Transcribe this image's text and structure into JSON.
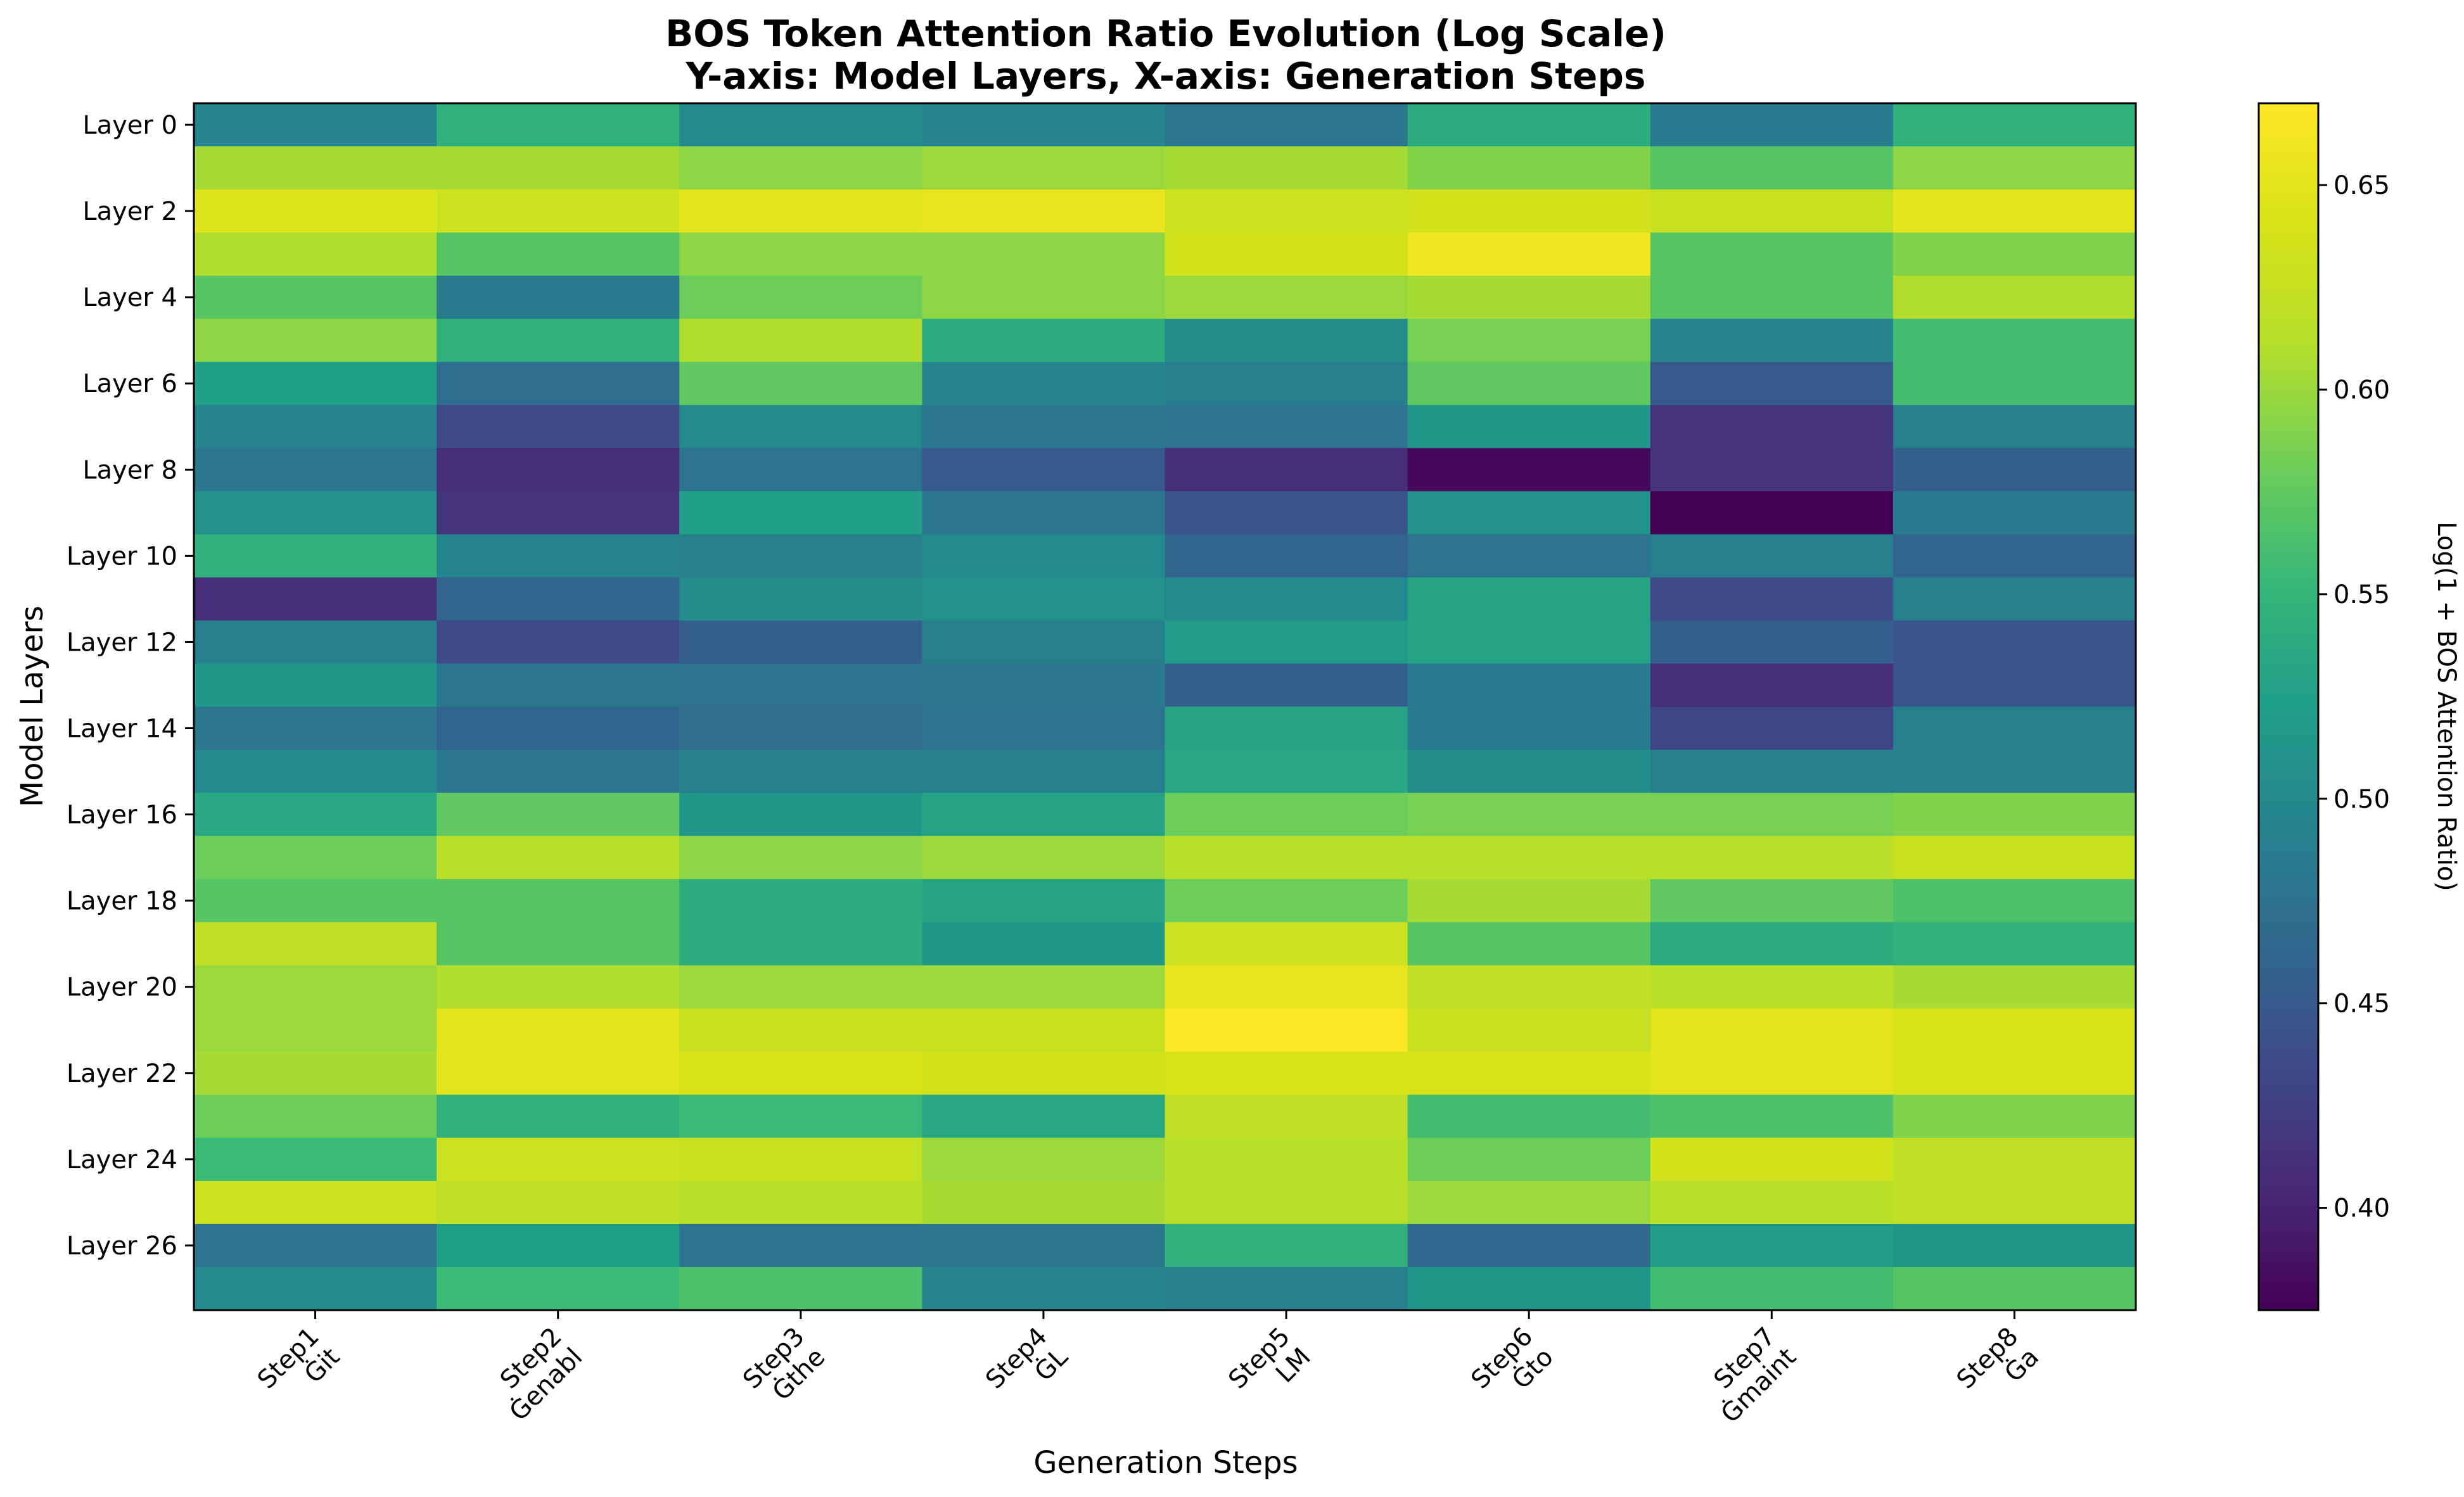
{
  "chart_data": {
    "type": "heatmap",
    "title": "BOS Token Attention Ratio Evolution (Log Scale)",
    "subtitle": "Y-axis: Model Layers, X-axis: Generation Steps",
    "xlabel": "Generation Steps",
    "ylabel": "Model Layers",
    "colorbar_label": "Log(1 + BOS Attention Ratio)",
    "colormap": "viridis",
    "color_range": [
      0.375,
      0.67
    ],
    "colorbar_ticks": [
      "0.40",
      "0.45",
      "0.50",
      "0.55",
      "0.60",
      "0.65"
    ],
    "colorbar_tick_values": [
      0.4,
      0.45,
      0.5,
      0.55,
      0.6,
      0.65
    ],
    "x_categories": [
      {
        "step": "Step1",
        "token": "Ġit"
      },
      {
        "step": "Step2",
        "token": "Ġenabl"
      },
      {
        "step": "Step3",
        "token": "Ġthe"
      },
      {
        "step": "Step4",
        "token": "ĠL"
      },
      {
        "step": "Step5",
        "token": "LM"
      },
      {
        "step": "Step6",
        "token": "Ġto"
      },
      {
        "step": "Step7",
        "token": "Ġmaint"
      },
      {
        "step": "Step8",
        "token": "Ġa"
      }
    ],
    "y_tick_labels": [
      {
        "row": 0,
        "label": "Layer 0"
      },
      {
        "row": 2,
        "label": "Layer 2"
      },
      {
        "row": 4,
        "label": "Layer 4"
      },
      {
        "row": 6,
        "label": "Layer 6"
      },
      {
        "row": 8,
        "label": "Layer 8"
      },
      {
        "row": 10,
        "label": "Layer 10"
      },
      {
        "row": 12,
        "label": "Layer 12"
      },
      {
        "row": 14,
        "label": "Layer 14"
      },
      {
        "row": 16,
        "label": "Layer 16"
      },
      {
        "row": 18,
        "label": "Layer 18"
      },
      {
        "row": 20,
        "label": "Layer 20"
      },
      {
        "row": 22,
        "label": "Layer 22"
      },
      {
        "row": 24,
        "label": "Layer 24"
      },
      {
        "row": 26,
        "label": "Layer 26"
      }
    ],
    "values": [
      [
        0.495,
        0.545,
        0.5,
        0.495,
        0.48,
        0.54,
        0.485,
        0.545
      ],
      [
        0.605,
        0.605,
        0.595,
        0.6,
        0.605,
        0.59,
        0.57,
        0.595
      ],
      [
        0.645,
        0.63,
        0.65,
        0.655,
        0.63,
        0.635,
        0.625,
        0.65
      ],
      [
        0.61,
        0.57,
        0.595,
        0.595,
        0.635,
        0.66,
        0.57,
        0.59
      ],
      [
        0.57,
        0.485,
        0.58,
        0.595,
        0.6,
        0.605,
        0.57,
        0.61
      ],
      [
        0.595,
        0.545,
        0.61,
        0.54,
        0.505,
        0.585,
        0.495,
        0.56
      ],
      [
        0.525,
        0.47,
        0.575,
        0.495,
        0.49,
        0.575,
        0.45,
        0.56
      ],
      [
        0.495,
        0.435,
        0.5,
        0.48,
        0.475,
        0.515,
        0.415,
        0.49
      ],
      [
        0.48,
        0.41,
        0.475,
        0.45,
        0.41,
        0.38,
        0.415,
        0.455
      ],
      [
        0.51,
        0.415,
        0.525,
        0.48,
        0.445,
        0.51,
        0.375,
        0.485
      ],
      [
        0.545,
        0.495,
        0.49,
        0.5,
        0.46,
        0.475,
        0.49,
        0.46
      ],
      [
        0.41,
        0.46,
        0.505,
        0.51,
        0.5,
        0.53,
        0.435,
        0.49
      ],
      [
        0.49,
        0.435,
        0.455,
        0.49,
        0.52,
        0.53,
        0.455,
        0.445
      ],
      [
        0.515,
        0.48,
        0.475,
        0.48,
        0.455,
        0.485,
        0.41,
        0.445
      ],
      [
        0.48,
        0.46,
        0.47,
        0.475,
        0.53,
        0.485,
        0.43,
        0.49
      ],
      [
        0.5,
        0.48,
        0.49,
        0.49,
        0.535,
        0.505,
        0.49,
        0.49
      ],
      [
        0.535,
        0.575,
        0.515,
        0.53,
        0.58,
        0.585,
        0.585,
        0.59
      ],
      [
        0.58,
        0.615,
        0.595,
        0.6,
        0.615,
        0.615,
        0.615,
        0.625
      ],
      [
        0.57,
        0.57,
        0.54,
        0.53,
        0.58,
        0.605,
        0.575,
        0.565
      ],
      [
        0.62,
        0.57,
        0.54,
        0.515,
        0.63,
        0.57,
        0.54,
        0.545
      ],
      [
        0.6,
        0.61,
        0.6,
        0.6,
        0.655,
        0.62,
        0.615,
        0.605
      ],
      [
        0.6,
        0.65,
        0.625,
        0.625,
        0.67,
        0.625,
        0.65,
        0.64
      ],
      [
        0.605,
        0.65,
        0.64,
        0.635,
        0.64,
        0.64,
        0.65,
        0.64
      ],
      [
        0.58,
        0.545,
        0.555,
        0.535,
        0.62,
        0.56,
        0.565,
        0.59
      ],
      [
        0.555,
        0.63,
        0.625,
        0.6,
        0.615,
        0.58,
        0.635,
        0.62
      ],
      [
        0.63,
        0.62,
        0.615,
        0.605,
        0.615,
        0.6,
        0.615,
        0.62
      ],
      [
        0.475,
        0.525,
        0.475,
        0.48,
        0.545,
        0.465,
        0.52,
        0.515
      ],
      [
        0.5,
        0.555,
        0.565,
        0.495,
        0.49,
        0.515,
        0.56,
        0.57
      ]
    ]
  }
}
